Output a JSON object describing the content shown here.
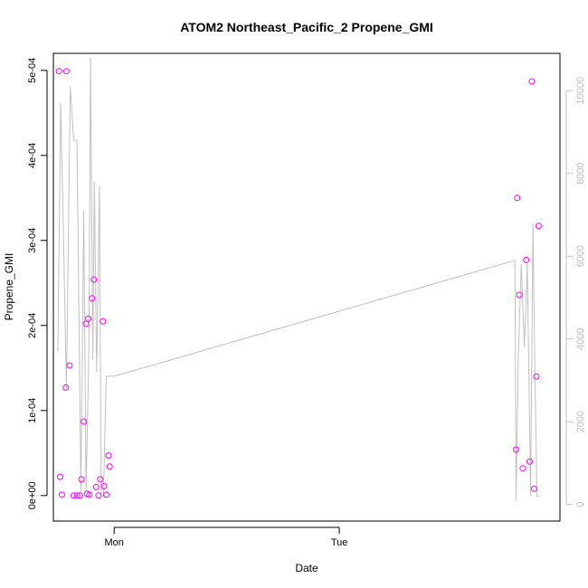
{
  "chart_data": {
    "type": "scatter",
    "title": "ATOM2 Northeast_Pacific_2 Propene_GMI",
    "xlabel": "Date",
    "ylabel": "Propene_GMI",
    "x_ticks": [
      {
        "label": "Mon",
        "value": 0.0
      },
      {
        "label": "Tue",
        "value": 1.0
      }
    ],
    "xlim": [
      -0.27,
      1.98
    ],
    "ylim": [
      -3e-05,
      0.00052
    ],
    "y_ticks": [
      {
        "label": "0e+00",
        "value": 0
      },
      {
        "label": "1e-04",
        "value": 0.0001
      },
      {
        "label": "2e-04",
        "value": 0.0002
      },
      {
        "label": "3e-04",
        "value": 0.0003
      },
      {
        "label": "4e-04",
        "value": 0.0004
      },
      {
        "label": "5e-04",
        "value": 0.0005
      }
    ],
    "y2lim": [
      -400,
      10900
    ],
    "y2_ticks": [
      {
        "label": "0",
        "value": 0
      },
      {
        "label": "2000",
        "value": 2000
      },
      {
        "label": "4000",
        "value": 4000
      },
      {
        "label": "6000",
        "value": 6000
      },
      {
        "label": "8000",
        "value": 8000
      },
      {
        "label": "10000",
        "value": 10000
      }
    ],
    "grid": false,
    "colors": {
      "points": "#ff00ff",
      "line": "#c0c0c0",
      "axis": "#000000",
      "right_axis": "#c0c0c0"
    },
    "series": [
      {
        "type": "scatter",
        "axis": "left",
        "x": [
          -0.245,
          -0.24,
          -0.232,
          -0.215,
          -0.212,
          -0.198,
          -0.18,
          -0.165,
          -0.152,
          -0.145,
          -0.135,
          -0.125,
          -0.12,
          -0.115,
          -0.11,
          -0.098,
          -0.09,
          -0.08,
          -0.07,
          -0.062,
          -0.05,
          -0.045,
          -0.035,
          -0.025,
          -0.02
        ],
        "y": [
          0.000499,
          2.2e-05,
          1e-06,
          0.000127,
          0.000499,
          0.000153,
          0.0,
          0.0,
          0.0,
          1.9e-05,
          8.7e-05,
          0.000202,
          2e-06,
          0.000208,
          1e-06,
          0.000232,
          0.000254,
          1e-05,
          0.0,
          1.9e-05,
          0.000205,
          1.1e-05,
          1e-06,
          4.7e-05,
          3.4e-05
        ]
      },
      {
        "type": "scatter",
        "axis": "left",
        "x": [
          1.785,
          1.79,
          1.8,
          1.815,
          1.83,
          1.845,
          1.855,
          1.865,
          1.875,
          1.885
        ],
        "y": [
          5.4e-05,
          0.00035,
          0.000236,
          3.2e-05,
          0.000277,
          4e-05,
          0.000487,
          8e-06,
          0.00014,
          0.000317
        ]
      },
      {
        "type": "line",
        "axis": "right",
        "x": [
          -0.25,
          -0.238,
          -0.225,
          -0.212,
          -0.195,
          -0.18,
          -0.165,
          -0.148,
          -0.135,
          -0.125,
          -0.112,
          -0.105,
          -0.095,
          -0.088,
          -0.078,
          -0.065,
          -0.058,
          -0.048,
          -0.035,
          -0.025,
          -0.018,
          0.0,
          1.78,
          1.785,
          1.795,
          1.808,
          1.822,
          1.835,
          1.85,
          1.86,
          1.868,
          1.878,
          1.885
        ],
        "y": [
          3700,
          9700,
          6500,
          2800,
          10100,
          8800,
          8800,
          300,
          7100,
          300,
          3800,
          10800,
          3500,
          7800,
          3200,
          7700,
          200,
          200,
          3100,
          3100,
          3100,
          3100,
          5900,
          100,
          3600,
          5800,
          3800,
          5800,
          200,
          6800,
          3500,
          200,
          200
        ]
      }
    ]
  }
}
